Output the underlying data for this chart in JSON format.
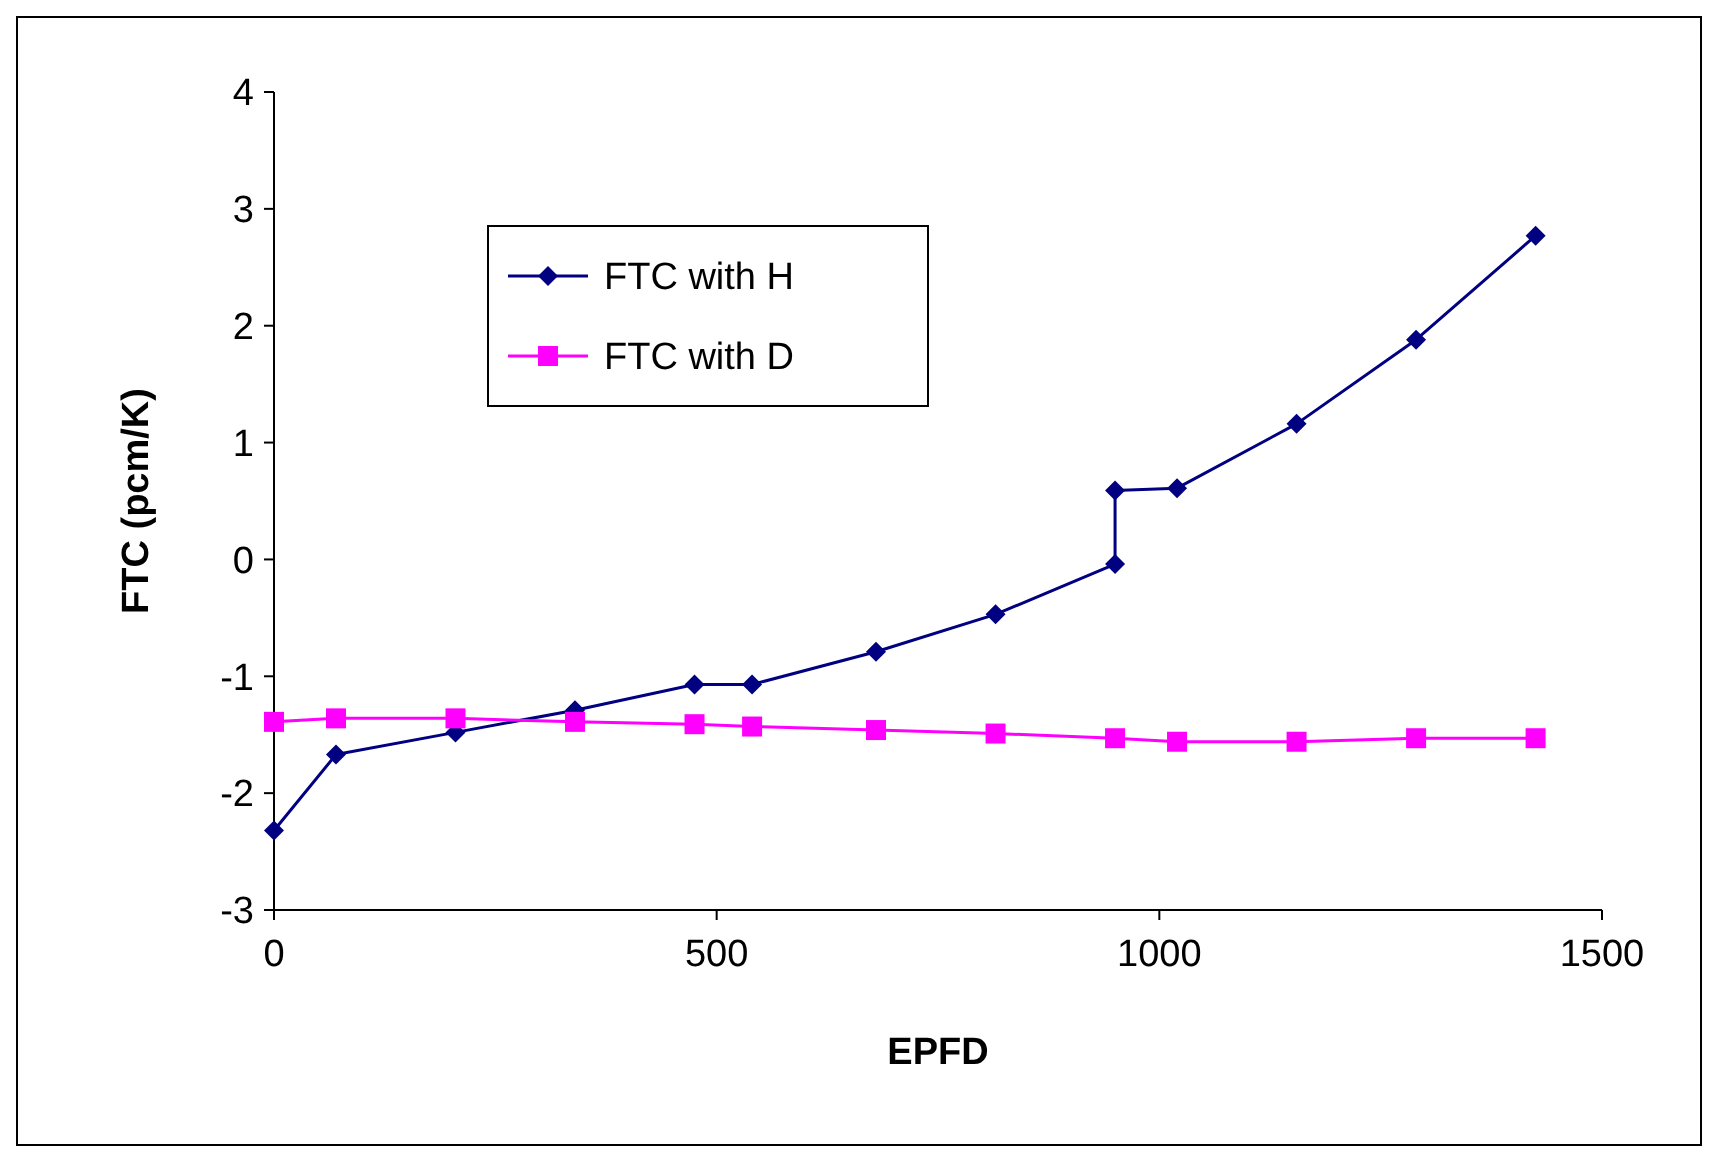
{
  "chart_data": {
    "type": "line",
    "xlabel": "EPFD",
    "ylabel": "FTC (pcm/K)",
    "xlim": [
      0,
      1500
    ],
    "xticks": [
      0,
      500,
      1000,
      1500
    ],
    "ylim": [
      -3,
      4
    ],
    "yticks": [
      -3,
      -2,
      -1,
      0,
      1,
      2,
      3,
      4
    ],
    "grid": false,
    "legend": "top left",
    "line_style": "solid",
    "series": [
      {
        "name": "FTC with H",
        "color": "#000080",
        "marker": "diamond",
        "x": [
          0,
          70,
          205,
          340,
          475,
          540,
          680,
          815,
          950,
          950,
          1020,
          1155,
          1290,
          1425
        ],
        "values": [
          -2.32,
          -1.67,
          -1.48,
          -1.29,
          -1.07,
          -1.07,
          -0.79,
          -0.47,
          -0.04,
          0.59,
          0.61,
          1.16,
          1.88,
          2.77
        ]
      },
      {
        "name": "FTC with D",
        "color": "#ff00ff",
        "marker": "square",
        "x": [
          0,
          70,
          205,
          340,
          475,
          540,
          680,
          815,
          950,
          1020,
          1155,
          1290,
          1425
        ],
        "values": [
          -1.39,
          -1.36,
          -1.36,
          -1.39,
          -1.41,
          -1.43,
          -1.46,
          -1.49,
          -1.53,
          -1.56,
          -1.56,
          -1.53,
          -1.53
        ]
      }
    ]
  }
}
